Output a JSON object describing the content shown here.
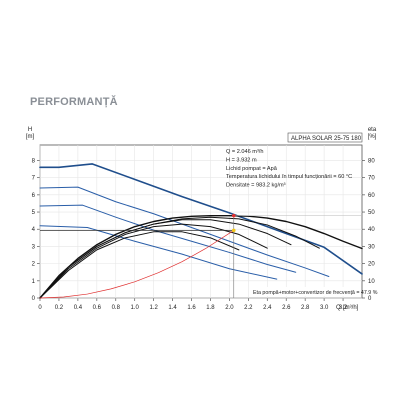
{
  "page": {
    "heading": "PERFORMANȚĂ"
  },
  "chart_data": {
    "type": "line",
    "model": "ALPHA SOLAR 25-75  180",
    "left_axis": {
      "label": "H",
      "unit": "[m]",
      "ticks": [
        0,
        1,
        2,
        3,
        4,
        5,
        6,
        7,
        8
      ],
      "ylim": [
        0,
        8.9
      ]
    },
    "right_axis": {
      "label": "eta",
      "unit": "[%]",
      "ticks": [
        0,
        10,
        20,
        30,
        40,
        50,
        60,
        70,
        80
      ],
      "ylim": [
        0,
        89
      ]
    },
    "x_axis": {
      "label": "Q",
      "unit": "[m³/h]",
      "ticks": [
        "0",
        "0.2",
        "0.4",
        "0.6",
        "0.8",
        "1.0",
        "1.2",
        "1.4",
        "1.6",
        "1.8",
        "2.0",
        "2.2",
        "2.4",
        "2.6",
        "2.8",
        "3.0",
        "3.2"
      ],
      "xlim": [
        0,
        3.4
      ]
    },
    "info": [
      "Q = 2.046  m³/h",
      "H = 3.932  m",
      "Lichid pompat = Apă",
      " Temperatura lichidului în timpul funcționării = 60  °C",
      "Densitate = 983.2  kg/m³"
    ],
    "efficiency_note": "Eta pompă+motor+convertizor de frecvență = 47.9 %",
    "operating_point": {
      "q": 2.046,
      "h": 3.932,
      "eta": 47.9
    },
    "series": [
      {
        "kind": "head",
        "color": "#1f4e8c",
        "width": 1.6,
        "points": [
          [
            0,
            7.6
          ],
          [
            0.2,
            7.6
          ],
          [
            0.55,
            7.8
          ],
          [
            1.0,
            6.9
          ],
          [
            1.5,
            5.9
          ],
          [
            2.0,
            4.95
          ],
          [
            2.5,
            3.95
          ],
          [
            3.0,
            2.95
          ],
          [
            3.4,
            1.4
          ]
        ]
      },
      {
        "kind": "head",
        "color": "#2a5ea8",
        "width": 1.0,
        "points": [
          [
            0,
            6.4
          ],
          [
            0.4,
            6.45
          ],
          [
            0.8,
            5.6
          ],
          [
            1.2,
            4.9
          ],
          [
            1.6,
            4.1
          ],
          [
            2.0,
            3.3
          ],
          [
            2.4,
            2.5
          ],
          [
            2.8,
            1.75
          ],
          [
            3.05,
            1.25
          ]
        ]
      },
      {
        "kind": "head",
        "color": "#2a5ea8",
        "width": 1.0,
        "points": [
          [
            0,
            5.35
          ],
          [
            0.45,
            5.4
          ],
          [
            0.8,
            4.7
          ],
          [
            1.2,
            3.95
          ],
          [
            1.6,
            3.3
          ],
          [
            2.0,
            2.65
          ],
          [
            2.4,
            1.95
          ],
          [
            2.7,
            1.5
          ]
        ]
      },
      {
        "kind": "head",
        "color": "#2a5ea8",
        "width": 1.0,
        "points": [
          [
            0,
            4.2
          ],
          [
            0.5,
            4.1
          ],
          [
            1.0,
            3.3
          ],
          [
            1.5,
            2.55
          ],
          [
            2.0,
            1.7
          ],
          [
            2.5,
            1.1
          ]
        ]
      },
      {
        "kind": "efficiency",
        "color": "#111111",
        "width": 1.4,
        "points": [
          [
            0,
            0
          ],
          [
            0.2,
            13
          ],
          [
            0.4,
            23
          ],
          [
            0.6,
            31
          ],
          [
            0.8,
            37
          ],
          [
            1.0,
            41.5
          ],
          [
            1.2,
            44.5
          ],
          [
            1.4,
            46.5
          ],
          [
            1.6,
            47.5
          ],
          [
            1.8,
            47.9
          ],
          [
            2.0,
            47.9
          ],
          [
            2.2,
            47.6
          ],
          [
            2.4,
            46.5
          ],
          [
            2.6,
            44.5
          ],
          [
            2.8,
            41.5
          ],
          [
            3.0,
            37.5
          ],
          [
            3.2,
            33
          ],
          [
            3.4,
            28.8
          ]
        ]
      },
      {
        "kind": "efficiency",
        "color": "#111111",
        "width": 1.0,
        "points": [
          [
            0,
            0
          ],
          [
            0.3,
            18
          ],
          [
            0.6,
            30
          ],
          [
            0.9,
            38
          ],
          [
            1.2,
            43
          ],
          [
            1.5,
            46
          ],
          [
            1.8,
            47
          ],
          [
            2.1,
            46
          ],
          [
            2.4,
            42.5
          ],
          [
            2.7,
            36
          ],
          [
            2.95,
            29
          ]
        ]
      },
      {
        "kind": "efficiency",
        "color": "#111111",
        "width": 1.0,
        "points": [
          [
            0,
            0
          ],
          [
            0.3,
            18
          ],
          [
            0.6,
            30
          ],
          [
            0.9,
            38
          ],
          [
            1.2,
            43
          ],
          [
            1.5,
            45.5
          ],
          [
            1.8,
            45.5
          ],
          [
            2.1,
            43
          ],
          [
            2.4,
            37.5
          ],
          [
            2.65,
            31
          ]
        ]
      },
      {
        "kind": "efficiency",
        "color": "#111111",
        "width": 1.0,
        "points": [
          [
            0,
            0
          ],
          [
            0.3,
            17
          ],
          [
            0.6,
            29
          ],
          [
            0.9,
            37
          ],
          [
            1.2,
            41.5
          ],
          [
            1.5,
            43
          ],
          [
            1.8,
            41.5
          ],
          [
            2.1,
            37
          ],
          [
            2.4,
            29
          ]
        ]
      },
      {
        "kind": "efficiency",
        "color": "#111111",
        "width": 1.0,
        "points": [
          [
            0,
            0
          ],
          [
            0.3,
            16
          ],
          [
            0.6,
            28
          ],
          [
            0.9,
            35
          ],
          [
            1.2,
            38.5
          ],
          [
            1.5,
            38.5
          ],
          [
            1.8,
            35
          ],
          [
            2.1,
            28
          ]
        ]
      },
      {
        "kind": "system",
        "color": "#e03030",
        "width": 0.7,
        "points": [
          [
            0,
            0
          ],
          [
            0.25,
            0.06
          ],
          [
            0.5,
            0.23
          ],
          [
            0.75,
            0.53
          ],
          [
            1.0,
            0.94
          ],
          [
            1.25,
            1.47
          ],
          [
            1.5,
            2.11
          ],
          [
            1.75,
            2.88
          ],
          [
            2.046,
            3.932
          ]
        ]
      }
    ],
    "markers": [
      {
        "q": 2.046,
        "h": 3.932,
        "color": "#f2c81a"
      },
      {
        "q": 2.046,
        "eta": 47.9,
        "color": "#e03030"
      }
    ]
  }
}
